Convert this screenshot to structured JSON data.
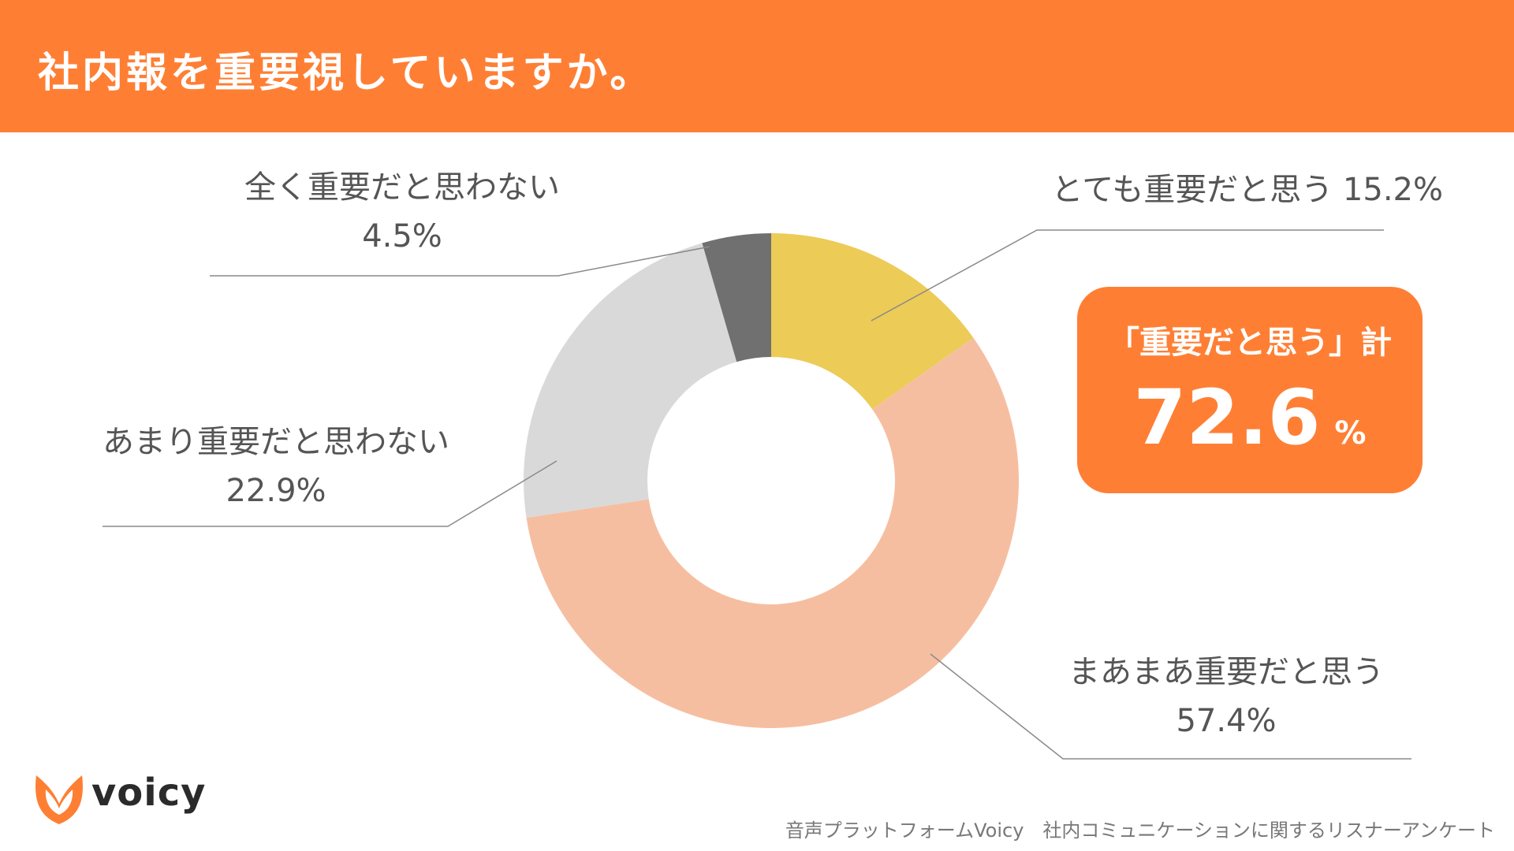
{
  "header": {
    "title": "社内報を重要視していますか。"
  },
  "chart_data": {
    "type": "pie",
    "donut": true,
    "start_angle": "12 o'clock, clockwise",
    "slices": [
      {
        "label": "とても重要だと思う",
        "value": 15.2,
        "value_text": "15.2%",
        "color": "#eccb57"
      },
      {
        "label": "まあまあ重要だと思う",
        "value": 57.4,
        "value_text": "57.4%",
        "color": "#f6bea0"
      },
      {
        "label": "あまり重要だと思わない",
        "value": 22.9,
        "value_text": "22.9%",
        "color": "#d9d9d9"
      },
      {
        "label": "全く重要だと思わない",
        "value": 4.5,
        "value_text": "4.5%",
        "color": "#707070"
      }
    ]
  },
  "summary": {
    "label": "「重要だと思う」計",
    "value": "72.6",
    "unit": "%"
  },
  "branding": {
    "logo_text": "voicy",
    "accent_color": "#fe7f34"
  },
  "footer": {
    "source": "音声プラットフォームVoicy　社内コミュニケーションに関するリスナーアンケート"
  }
}
